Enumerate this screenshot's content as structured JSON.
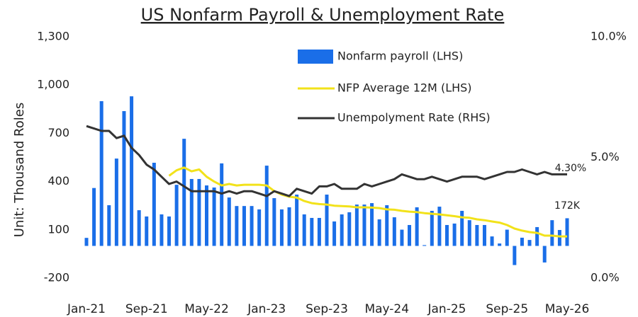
{
  "chart_data": {
    "type": "bar",
    "title": "US Nonfarm Payroll & Unemployment Rate",
    "y_label": "Unit: Thousand Roles",
    "categories": [
      "Jan-21",
      null,
      null,
      null,
      null,
      null,
      null,
      null,
      "Sep-21",
      null,
      null,
      null,
      null,
      null,
      null,
      null,
      "May-22",
      null,
      null,
      null,
      null,
      null,
      null,
      null,
      "Jan-23",
      null,
      null,
      null,
      null,
      null,
      null,
      null,
      "Sep-23",
      null,
      null,
      null,
      null,
      null,
      null,
      null,
      "May-24",
      null,
      null,
      null,
      null,
      null,
      null,
      null,
      "Jan-25",
      null,
      null,
      null,
      null,
      null,
      null,
      null,
      "Sep-25",
      null,
      null,
      null,
      null,
      null,
      null,
      null,
      "May-26"
    ],
    "series": [
      {
        "name": "Nonfarm payroll (LHS)",
        "type": "bar",
        "color": "#1a6ee8",
        "values": [
          50,
          360,
          900,
          253,
          543,
          838,
          930,
          222,
          183,
          517,
          196,
          183,
          380,
          666,
          416,
          416,
          376,
          363,
          513,
          301,
          248,
          248,
          248,
          227,
          499,
          297,
          227,
          240,
          319,
          196,
          174,
          174,
          319,
          152,
          196,
          209,
          257,
          257,
          266,
          165,
          253,
          178,
          101,
          130,
          240,
          5,
          218,
          244,
          130,
          139,
          218,
          160,
          130,
          130,
          59,
          15,
          101,
          -119,
          51,
          37,
          117,
          -103,
          160,
          99,
          172
        ]
      },
      {
        "name": "NFP Average 12M (LHS)",
        "type": "line",
        "color": "#f2e21a",
        "values": [
          null,
          null,
          null,
          null,
          null,
          null,
          null,
          null,
          null,
          null,
          null,
          436,
          470,
          487,
          464,
          475,
          430,
          400,
          376,
          385,
          376,
          380,
          380,
          380,
          376,
          341,
          319,
          306,
          300,
          279,
          266,
          260,
          257,
          250,
          248,
          245,
          240,
          240,
          238,
          235,
          227,
          225,
          218,
          213,
          210,
          204,
          200,
          196,
          190,
          185,
          178,
          175,
          165,
          160,
          152,
          145,
          130,
          108,
          95,
          86,
          81,
          64,
          64,
          59,
          59
        ]
      },
      {
        "name": "Unempolyment Rate (RHS)",
        "type": "line",
        "axis": "y2",
        "color": "#333333",
        "values": [
          6.3,
          6.2,
          6.1,
          6.1,
          5.8,
          5.9,
          5.4,
          5.1,
          4.7,
          4.5,
          4.2,
          3.9,
          4.0,
          3.8,
          3.6,
          3.6,
          3.6,
          3.6,
          3.5,
          3.6,
          3.5,
          3.6,
          3.6,
          3.5,
          3.4,
          3.6,
          3.5,
          3.4,
          3.7,
          3.6,
          3.5,
          3.8,
          3.8,
          3.9,
          3.7,
          3.7,
          3.7,
          3.9,
          3.8,
          3.9,
          4.0,
          4.1,
          4.3,
          4.2,
          4.1,
          4.1,
          4.2,
          4.1,
          4.0,
          4.1,
          4.2,
          4.2,
          4.2,
          4.1,
          4.2,
          4.3,
          4.4,
          4.4,
          4.5,
          4.4,
          4.3,
          4.4,
          4.3,
          4.3,
          4.3
        ]
      }
    ],
    "annotations": [
      "4.30%",
      "172K"
    ],
    "ylim": [
      -200,
      1300
    ],
    "yticks": [
      -200,
      100,
      400,
      700,
      {
        "value": 1000,
        "label": "1,000"
      },
      {
        "value": 1300,
        "label": "1,300"
      }
    ],
    "y2lim": [
      0,
      10
    ],
    "y2ticks": [
      {
        "value": 0,
        "label": "0.0%"
      },
      {
        "value": 5,
        "label": "5.0%"
      },
      {
        "value": 10,
        "label": "10.0%"
      }
    ]
  }
}
